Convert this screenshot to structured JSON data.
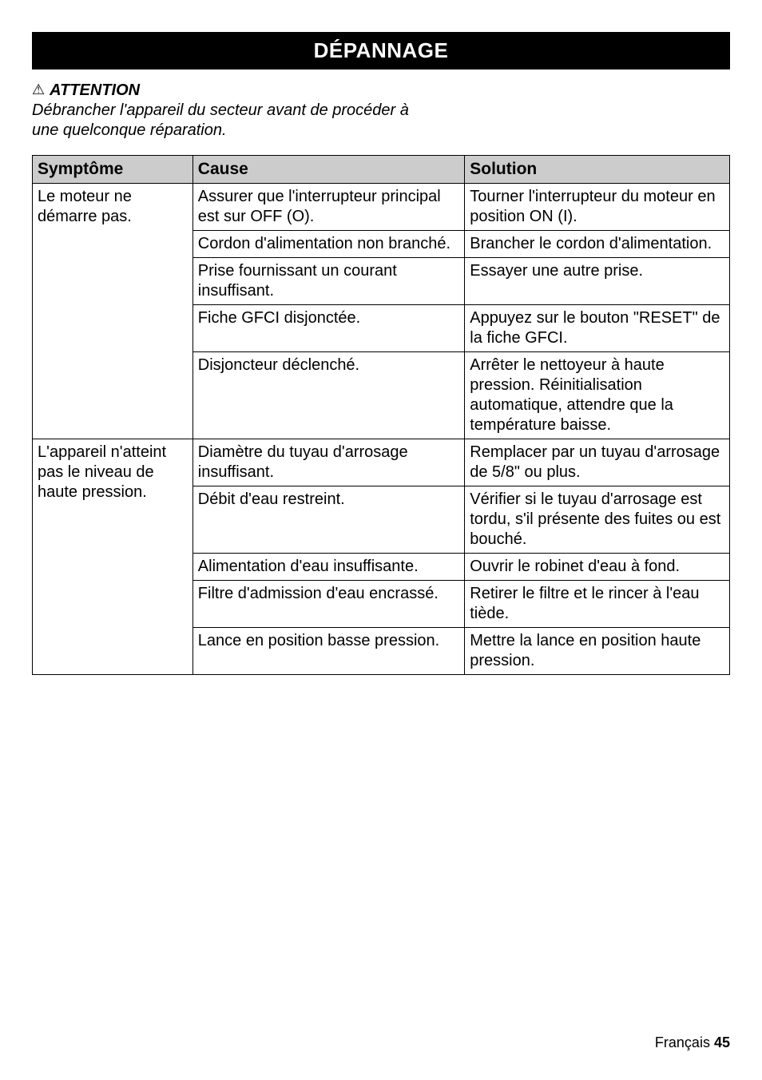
{
  "banner": "DÉPANNAGE",
  "warning": {
    "symbol": "⚠",
    "title": "ATTENTION",
    "body": "Débrancher l'appareil du secteur avant de procéder à une quelconque réparation."
  },
  "table": {
    "headers": {
      "sym": "Symptôme",
      "cause": "Cause",
      "sol": "Solution"
    },
    "groups": [
      {
        "symptom": "Le moteur ne démarre pas.",
        "rows": [
          {
            "cause": "Assurer que l'interrupteur principal est sur OFF (O).",
            "sol": "Tourner l'interrupteur du moteur en position ON (I)."
          },
          {
            "cause": "Cordon d'alimentation non branché.",
            "sol": "Brancher le cordon d'alimentation."
          },
          {
            "cause": "Prise fournissant un courant insuffisant.",
            "sol": "Essayer une autre prise."
          },
          {
            "cause": "Fiche GFCI disjonctée.",
            "sol": "Appuyez sur le bouton \"RESET\" de la fiche GFCI."
          },
          {
            "cause": "Disjoncteur déclenché.",
            "sol": "Arrêter le nettoyeur à haute pression. Réinitialisation automatique, attendre que la température baisse."
          }
        ]
      },
      {
        "symptom": "L'appareil n'atteint pas le niveau de haute pression.",
        "rows": [
          {
            "cause": "Diamètre du tuyau d'arrosage insuffisant.",
            "sol": "Remplacer par un tuyau d'arrosage de 5/8\" ou plus."
          },
          {
            "cause": "Débit d'eau restreint.",
            "sol": "Vérifier si le tuyau d'arrosage est tordu, s'il présente des fuites ou est bouché."
          },
          {
            "cause": "Alimentation d'eau insuffisante.",
            "sol": "Ouvrir le robinet d'eau à fond."
          },
          {
            "cause": "Filtre d'admission d'eau encrassé.",
            "sol": "Retirer le filtre et le rincer à l'eau tiède."
          },
          {
            "cause": "Lance en position basse pression.",
            "sol": "Mettre la lance en position haute pression."
          }
        ]
      }
    ]
  },
  "footer": {
    "lang": "Français",
    "page": "45"
  }
}
